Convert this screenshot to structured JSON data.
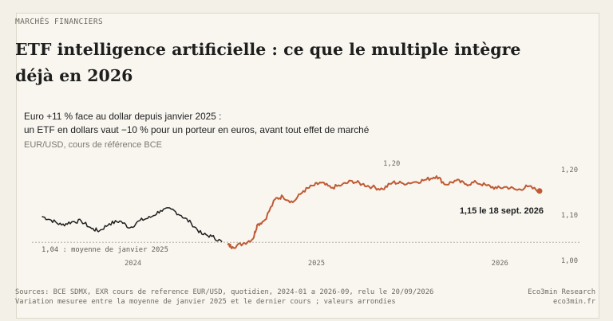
{
  "header": {
    "kicker": "MARCHÉS FINANCIERS",
    "title": "ETF intelligence artificielle : ce que le multiple intègre déjà en 2026"
  },
  "chart_data": {
    "type": "line",
    "subtitle_line1": "Euro +11 % face au dollar depuis janvier 2025 :",
    "subtitle_line2": "un ETF en dollars vaut −10 % pour un porteur en euros, avant tout effet de marché",
    "unit_label": "EUR/USD, cours de référence BCE",
    "ylim": [
      1.0,
      1.2
    ],
    "y_ticks": [
      "1,00",
      "1,10",
      "1,20"
    ],
    "x_ticks": [
      {
        "date": "2024-07-01",
        "label": "2024"
      },
      {
        "date": "2025-07-01",
        "label": "2025"
      },
      {
        "date": "2026-07-01",
        "label": "2026"
      }
    ],
    "reference_line": {
      "value": 1.04,
      "label": "1,04 : moyenne de janvier 2025"
    },
    "grid": false,
    "series": [
      {
        "color": "#1f1f1f",
        "x": [
          "2024-01-02",
          "2024-01-20",
          "2024-02-10",
          "2024-03-01",
          "2024-03-20",
          "2024-04-10",
          "2024-04-25",
          "2024-05-15",
          "2024-06-05",
          "2024-06-25",
          "2024-07-15",
          "2024-08-05",
          "2024-08-25",
          "2024-09-15",
          "2024-10-05",
          "2024-10-25",
          "2024-11-15",
          "2024-12-05",
          "2024-12-25"
        ],
        "y": [
          1.097,
          1.089,
          1.078,
          1.085,
          1.087,
          1.07,
          1.065,
          1.081,
          1.087,
          1.072,
          1.088,
          1.095,
          1.11,
          1.113,
          1.099,
          1.082,
          1.058,
          1.053,
          1.041
        ]
      },
      {
        "color": "#c05a34",
        "x": [
          "2025-01-05",
          "2025-01-15",
          "2025-02-05",
          "2025-02-25",
          "2025-03-05",
          "2025-03-20",
          "2025-04-10",
          "2025-04-25",
          "2025-05-15",
          "2025-06-05",
          "2025-06-25",
          "2025-07-10",
          "2025-07-30",
          "2025-08-20",
          "2025-09-10",
          "2025-09-30",
          "2025-10-20",
          "2025-11-10",
          "2025-11-30",
          "2025-12-20",
          "2026-01-15",
          "2026-02-05",
          "2026-02-25",
          "2026-03-15",
          "2026-04-05",
          "2026-04-25",
          "2026-05-15",
          "2026-06-05",
          "2026-06-25",
          "2026-07-15",
          "2026-08-05",
          "2026-08-25",
          "2026-09-18"
        ],
        "y": [
          1.035,
          1.03,
          1.037,
          1.048,
          1.078,
          1.089,
          1.135,
          1.141,
          1.128,
          1.153,
          1.165,
          1.171,
          1.16,
          1.166,
          1.175,
          1.168,
          1.162,
          1.157,
          1.172,
          1.17,
          1.173,
          1.178,
          1.186,
          1.167,
          1.176,
          1.168,
          1.172,
          1.165,
          1.159,
          1.162,
          1.155,
          1.163,
          1.153
        ]
      }
    ],
    "annotations": [
      {
        "text": "1,20",
        "x": "2025-12-01",
        "y": 1.2
      },
      {
        "text": "1,15 le 18 sept. 2026",
        "x": "2026-09-18",
        "y": 1.15
      }
    ]
  },
  "footer": {
    "source_line1": "Sources: BCE SDMX, EXR cours de reference EUR/USD, quotidien, 2024-01 a 2026-09, relu le 20/09/2026",
    "source_line2": "Variation mesuree entre la moyenne de janvier 2025 et le dernier cours ; valeurs arrondies",
    "brand_line1": "Eco3min Research",
    "brand_line2": "eco3min.fr"
  }
}
